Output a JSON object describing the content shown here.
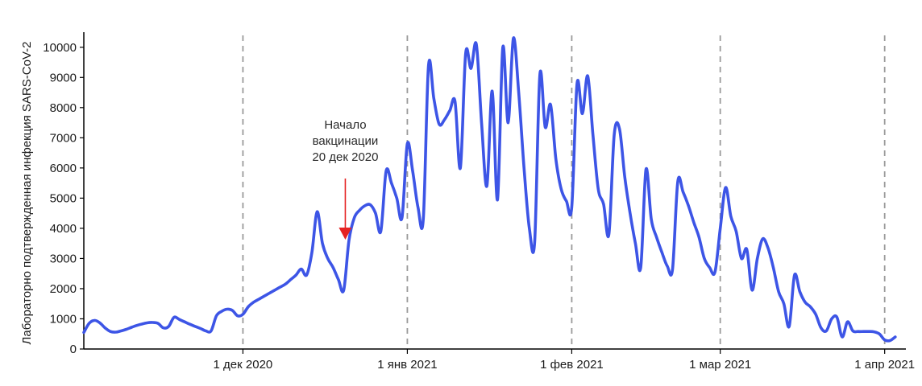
{
  "chart_data": {
    "type": "line",
    "ylabel": "Лабораторно подтвержденная инфекция SARS-CoV-2",
    "ylim": [
      0,
      10500
    ],
    "y_ticks": [
      "0",
      "1000",
      "2000",
      "3000",
      "4000",
      "5000",
      "6000",
      "7000",
      "8000",
      "9000",
      "10000"
    ],
    "xlim": [
      "2020-11-01",
      "2021-04-05"
    ],
    "x_ticks": [
      {
        "date": "2020-12-01",
        "label": "1 дек 2020"
      },
      {
        "date": "2021-01-01",
        "label": "1 янв 2021"
      },
      {
        "date": "2021-02-01",
        "label": "1 фев 2021"
      },
      {
        "date": "2021-03-01",
        "label": "1 мар 2021"
      },
      {
        "date": "2021-04-01",
        "label": "1 апр 2021"
      }
    ],
    "grid": "vertical dashed at month starts",
    "series": [
      {
        "color": "#3d55e6",
        "points": [
          [
            "2020-11-01",
            550
          ],
          [
            "2020-11-02",
            850
          ],
          [
            "2020-11-03",
            950
          ],
          [
            "2020-11-04",
            870
          ],
          [
            "2020-11-05",
            700
          ],
          [
            "2020-11-06",
            580
          ],
          [
            "2020-11-07",
            560
          ],
          [
            "2020-11-08",
            600
          ],
          [
            "2020-11-09",
            650
          ],
          [
            "2020-11-10",
            720
          ],
          [
            "2020-11-11",
            780
          ],
          [
            "2020-11-12",
            830
          ],
          [
            "2020-11-13",
            870
          ],
          [
            "2020-11-14",
            880
          ],
          [
            "2020-11-15",
            850
          ],
          [
            "2020-11-16",
            700
          ],
          [
            "2020-11-17",
            750
          ],
          [
            "2020-11-18",
            1050
          ],
          [
            "2020-11-19",
            980
          ],
          [
            "2020-11-20",
            900
          ],
          [
            "2020-11-21",
            820
          ],
          [
            "2020-11-22",
            750
          ],
          [
            "2020-11-23",
            680
          ],
          [
            "2020-11-24",
            600
          ],
          [
            "2020-11-25",
            600
          ],
          [
            "2020-11-26",
            1100
          ],
          [
            "2020-11-27",
            1250
          ],
          [
            "2020-11-28",
            1320
          ],
          [
            "2020-11-29",
            1280
          ],
          [
            "2020-11-30",
            1100
          ],
          [
            "2020-12-01",
            1150
          ],
          [
            "2020-12-02",
            1400
          ],
          [
            "2020-12-03",
            1550
          ],
          [
            "2020-12-04",
            1650
          ],
          [
            "2020-12-05",
            1750
          ],
          [
            "2020-12-06",
            1850
          ],
          [
            "2020-12-07",
            1950
          ],
          [
            "2020-12-08",
            2050
          ],
          [
            "2020-12-09",
            2150
          ],
          [
            "2020-12-10",
            2300
          ],
          [
            "2020-12-11",
            2450
          ],
          [
            "2020-12-12",
            2650
          ],
          [
            "2020-12-13",
            2450
          ],
          [
            "2020-12-14",
            3200
          ],
          [
            "2020-12-15",
            4550
          ],
          [
            "2020-12-16",
            3500
          ],
          [
            "2020-12-17",
            3000
          ],
          [
            "2020-12-18",
            2700
          ],
          [
            "2020-12-19",
            2300
          ],
          [
            "2020-12-20",
            1950
          ],
          [
            "2020-12-21",
            3600
          ],
          [
            "2020-12-22",
            4350
          ],
          [
            "2020-12-23",
            4600
          ],
          [
            "2020-12-24",
            4750
          ],
          [
            "2020-12-25",
            4780
          ],
          [
            "2020-12-26",
            4500
          ],
          [
            "2020-12-27",
            3900
          ],
          [
            "2020-12-28",
            5900
          ],
          [
            "2020-12-29",
            5500
          ],
          [
            "2020-12-30",
            5000
          ],
          [
            "2020-12-31",
            4350
          ],
          [
            "2021-01-01",
            6800
          ],
          [
            "2021-01-02",
            5900
          ],
          [
            "2021-01-03",
            4700
          ],
          [
            "2021-01-04",
            4300
          ],
          [
            "2021-01-05",
            9400
          ],
          [
            "2021-01-06",
            8300
          ],
          [
            "2021-01-07",
            7450
          ],
          [
            "2021-01-08",
            7600
          ],
          [
            "2021-01-09",
            7900
          ],
          [
            "2021-01-10",
            8200
          ],
          [
            "2021-01-11",
            6000
          ],
          [
            "2021-01-12",
            9800
          ],
          [
            "2021-01-13",
            9300
          ],
          [
            "2021-01-14",
            10100
          ],
          [
            "2021-01-15",
            7500
          ],
          [
            "2021-01-16",
            5400
          ],
          [
            "2021-01-17",
            8550
          ],
          [
            "2021-01-18",
            4950
          ],
          [
            "2021-01-19",
            10000
          ],
          [
            "2021-01-20",
            7500
          ],
          [
            "2021-01-21",
            10300
          ],
          [
            "2021-01-22",
            8500
          ],
          [
            "2021-01-23",
            6000
          ],
          [
            "2021-01-24",
            4000
          ],
          [
            "2021-01-25",
            3550
          ],
          [
            "2021-01-26",
            9100
          ],
          [
            "2021-01-27",
            7350
          ],
          [
            "2021-01-28",
            8100
          ],
          [
            "2021-01-29",
            6300
          ],
          [
            "2021-01-30",
            5300
          ],
          [
            "2021-01-31",
            4900
          ],
          [
            "2021-02-01",
            4700
          ],
          [
            "2021-02-02",
            8800
          ],
          [
            "2021-02-03",
            7800
          ],
          [
            "2021-02-04",
            9050
          ],
          [
            "2021-02-05",
            7100
          ],
          [
            "2021-02-06",
            5300
          ],
          [
            "2021-02-07",
            4800
          ],
          [
            "2021-02-08",
            3800
          ],
          [
            "2021-02-09",
            7100
          ],
          [
            "2021-02-10",
            7300
          ],
          [
            "2021-02-11",
            5700
          ],
          [
            "2021-02-12",
            4500
          ],
          [
            "2021-02-13",
            3500
          ],
          [
            "2021-02-14",
            2700
          ],
          [
            "2021-02-15",
            5950
          ],
          [
            "2021-02-16",
            4300
          ],
          [
            "2021-02-17",
            3700
          ],
          [
            "2021-02-18",
            3200
          ],
          [
            "2021-02-19",
            2750
          ],
          [
            "2021-02-20",
            2650
          ],
          [
            "2021-02-21",
            5550
          ],
          [
            "2021-02-22",
            5200
          ],
          [
            "2021-02-23",
            4750
          ],
          [
            "2021-02-24",
            4200
          ],
          [
            "2021-02-25",
            3700
          ],
          [
            "2021-02-26",
            3000
          ],
          [
            "2021-02-27",
            2700
          ],
          [
            "2021-02-28",
            2550
          ],
          [
            "2021-03-01",
            4000
          ],
          [
            "2021-03-02",
            5350
          ],
          [
            "2021-03-03",
            4400
          ],
          [
            "2021-03-04",
            3900
          ],
          [
            "2021-03-05",
            3000
          ],
          [
            "2021-03-06",
            3300
          ],
          [
            "2021-03-07",
            1950
          ],
          [
            "2021-03-08",
            3000
          ],
          [
            "2021-03-09",
            3650
          ],
          [
            "2021-03-10",
            3350
          ],
          [
            "2021-03-11",
            2700
          ],
          [
            "2021-03-12",
            1900
          ],
          [
            "2021-03-13",
            1500
          ],
          [
            "2021-03-14",
            750
          ],
          [
            "2021-03-15",
            2450
          ],
          [
            "2021-03-16",
            1900
          ],
          [
            "2021-03-17",
            1550
          ],
          [
            "2021-03-18",
            1400
          ],
          [
            "2021-03-19",
            1150
          ],
          [
            "2021-03-20",
            700
          ],
          [
            "2021-03-21",
            600
          ],
          [
            "2021-03-22",
            1000
          ],
          [
            "2021-03-23",
            1050
          ],
          [
            "2021-03-24",
            400
          ],
          [
            "2021-03-25",
            900
          ],
          [
            "2021-03-26",
            600
          ],
          [
            "2021-03-27",
            580
          ],
          [
            "2021-03-28",
            580
          ],
          [
            "2021-03-29",
            580
          ],
          [
            "2021-03-30",
            570
          ],
          [
            "2021-03-31",
            500
          ],
          [
            "2021-04-01",
            300
          ],
          [
            "2021-04-02",
            280
          ],
          [
            "2021-04-03",
            400
          ]
        ]
      }
    ],
    "annotations": [
      {
        "date": "2020-12-20",
        "lines": [
          "Начало",
          "вакцинации",
          "20 дек 2020"
        ],
        "arrow_color": "#e52222"
      }
    ]
  }
}
